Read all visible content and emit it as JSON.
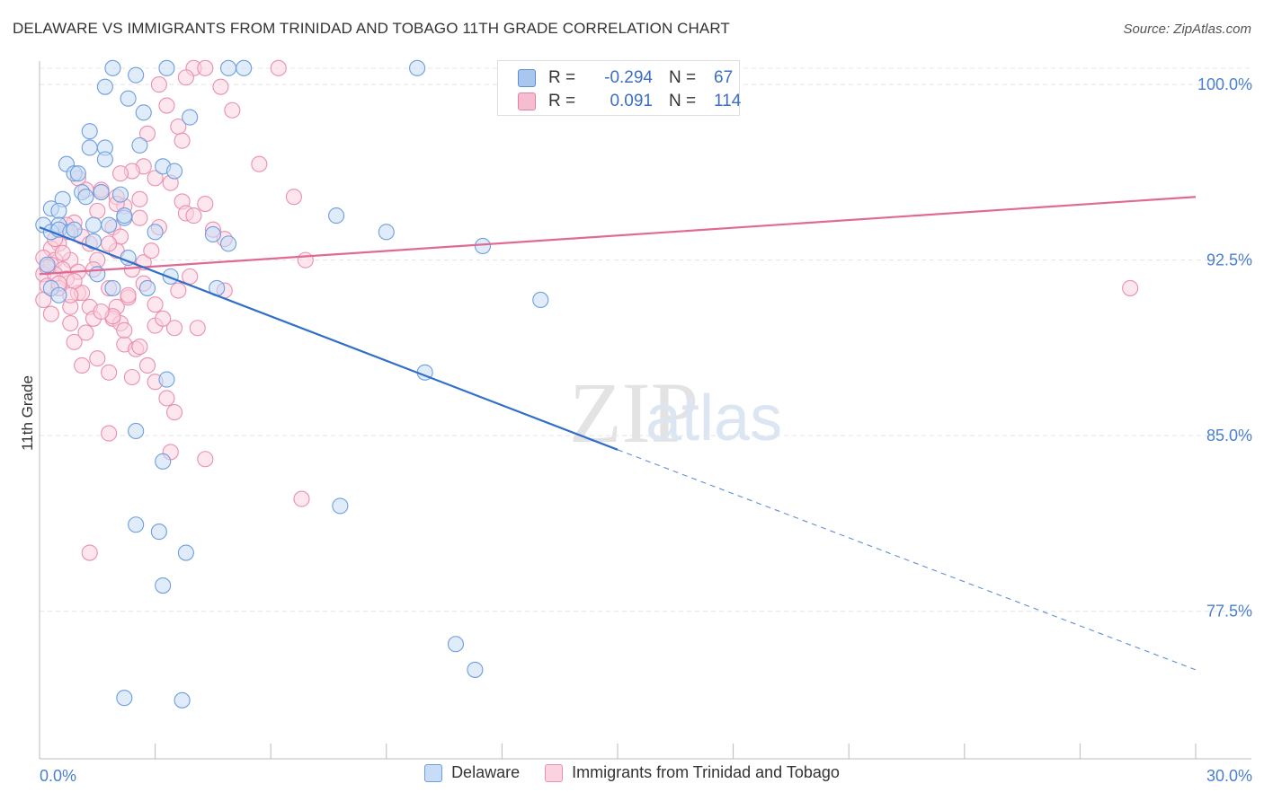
{
  "title": "DELAWARE VS IMMIGRANTS FROM TRINIDAD AND TOBAGO 11TH GRADE CORRELATION CHART",
  "source": "Source: ZipAtlas.com",
  "watermark": {
    "zip": "ZIP",
    "atlas": "atlas"
  },
  "stats": [
    {
      "r_label": "R =",
      "r_value": "-0.294",
      "n_label": "N =",
      "n_value": "67",
      "color": "#a9c7ee",
      "border": "#5b8fd6"
    },
    {
      "r_label": "R =",
      "r_value": "0.091",
      "n_label": "N =",
      "n_value": "114",
      "color": "#f6bcd0",
      "border": "#e77fa2"
    }
  ],
  "legend": [
    {
      "label": "Delaware",
      "color": "#c7dcf6",
      "border": "#6d9ee0"
    },
    {
      "label": "Immigrants from Trinidad and Tobago",
      "color": "#fbd2df",
      "border": "#ea8fae"
    }
  ],
  "chart_data": {
    "type": "scatter",
    "title": "DELAWARE VS IMMIGRANTS FROM TRINIDAD AND TOBAGO 11TH GRADE CORRELATION CHART",
    "xlabel": "",
    "ylabel": "11th Grade",
    "xlim": [
      0,
      30
    ],
    "ylim": [
      71.2,
      101
    ],
    "x_tick_labels": [
      {
        "value": 0,
        "label": "0.0%"
      },
      {
        "value": 30,
        "label": "30.0%"
      }
    ],
    "y_ticks": [
      {
        "value": 77.5,
        "label": "77.5%"
      },
      {
        "value": 85.0,
        "label": "85.0%"
      },
      {
        "value": 92.5,
        "label": "92.5%"
      },
      {
        "value": 100.0,
        "label": "100.0%"
      }
    ],
    "x_minor_ticks": [
      0,
      3,
      6,
      9,
      12,
      15,
      18,
      21,
      24,
      27,
      30
    ],
    "grid": true,
    "series": [
      {
        "name": "Delaware",
        "color": "#6d9ee0",
        "fill": "#c7dcf6",
        "trend": {
          "x": [
            0,
            15
          ],
          "y": [
            93.9,
            84.4
          ],
          "dashed_to": {
            "x": 30,
            "y": 75.0
          }
        },
        "points": [
          [
            1.9,
            100.7
          ],
          [
            2.5,
            100.4
          ],
          [
            3.3,
            100.7
          ],
          [
            4.9,
            100.7
          ],
          [
            5.3,
            100.7
          ],
          [
            9.8,
            100.7
          ],
          [
            1.7,
            99.9
          ],
          [
            2.3,
            99.4
          ],
          [
            2.7,
            98.8
          ],
          [
            3.9,
            98.6
          ],
          [
            1.3,
            98.0
          ],
          [
            1.3,
            97.3
          ],
          [
            1.7,
            97.3
          ],
          [
            2.6,
            97.4
          ],
          [
            1.7,
            96.8
          ],
          [
            0.7,
            96.6
          ],
          [
            3.2,
            96.5
          ],
          [
            0.9,
            96.2
          ],
          [
            1.0,
            96.2
          ],
          [
            3.5,
            96.3
          ],
          [
            1.6,
            95.4
          ],
          [
            1.1,
            95.4
          ],
          [
            2.1,
            95.3
          ],
          [
            1.2,
            95.2
          ],
          [
            0.6,
            95.1
          ],
          [
            0.3,
            94.7
          ],
          [
            0.5,
            94.6
          ],
          [
            2.2,
            94.3
          ],
          [
            2.2,
            94.4
          ],
          [
            7.7,
            94.4
          ],
          [
            0.1,
            94.0
          ],
          [
            0.5,
            94.0
          ],
          [
            1.4,
            94.0
          ],
          [
            1.8,
            94.0
          ],
          [
            0.3,
            93.7
          ],
          [
            0.5,
            93.8
          ],
          [
            0.8,
            93.7
          ],
          [
            0.9,
            93.8
          ],
          [
            4.5,
            93.6
          ],
          [
            4.9,
            93.2
          ],
          [
            3.0,
            93.7
          ],
          [
            9.0,
            93.7
          ],
          [
            11.5,
            93.1
          ],
          [
            1.4,
            93.3
          ],
          [
            2.3,
            92.6
          ],
          [
            1.5,
            91.9
          ],
          [
            1.9,
            91.3
          ],
          [
            3.4,
            91.8
          ],
          [
            0.3,
            91.3
          ],
          [
            2.8,
            91.3
          ],
          [
            4.6,
            91.3
          ],
          [
            0.5,
            91.0
          ],
          [
            13.0,
            90.8
          ],
          [
            3.3,
            87.4
          ],
          [
            2.5,
            85.2
          ],
          [
            10.0,
            87.7
          ],
          [
            3.2,
            83.9
          ],
          [
            7.8,
            82.0
          ],
          [
            2.5,
            81.2
          ],
          [
            3.1,
            80.9
          ],
          [
            3.8,
            80.0
          ],
          [
            3.2,
            78.6
          ],
          [
            10.8,
            76.1
          ],
          [
            11.3,
            75.0
          ],
          [
            2.2,
            73.8
          ],
          [
            3.7,
            73.7
          ],
          [
            0.2,
            92.3
          ]
        ]
      },
      {
        "name": "Immigrants from Trinidad and Tobago",
        "color": "#ea8fae",
        "fill": "#fbd2df",
        "trend": {
          "x": [
            0,
            30
          ],
          "y": [
            91.9,
            95.2
          ]
        },
        "points": [
          [
            4.0,
            100.7
          ],
          [
            4.3,
            100.7
          ],
          [
            6.2,
            100.7
          ],
          [
            3.8,
            100.3
          ],
          [
            3.1,
            100.0
          ],
          [
            4.7,
            99.9
          ],
          [
            3.3,
            99.1
          ],
          [
            5.0,
            98.9
          ],
          [
            3.6,
            98.2
          ],
          [
            2.8,
            97.9
          ],
          [
            3.7,
            97.6
          ],
          [
            5.7,
            96.6
          ],
          [
            2.7,
            96.5
          ],
          [
            2.4,
            96.3
          ],
          [
            2.1,
            96.2
          ],
          [
            3.0,
            96.0
          ],
          [
            3.4,
            95.8
          ],
          [
            1.2,
            95.5
          ],
          [
            1.6,
            95.4
          ],
          [
            2.0,
            95.2
          ],
          [
            2.6,
            95.1
          ],
          [
            3.7,
            95.0
          ],
          [
            6.6,
            95.2
          ],
          [
            2.2,
            94.8
          ],
          [
            4.3,
            94.9
          ],
          [
            1.5,
            94.6
          ],
          [
            3.8,
            94.5
          ],
          [
            4.0,
            94.4
          ],
          [
            2.6,
            94.3
          ],
          [
            0.9,
            94.1
          ],
          [
            0.7,
            94.0
          ],
          [
            1.9,
            93.9
          ],
          [
            3.1,
            93.9
          ],
          [
            4.5,
            93.8
          ],
          [
            0.7,
            93.7
          ],
          [
            1.1,
            93.5
          ],
          [
            2.1,
            93.5
          ],
          [
            4.8,
            93.4
          ],
          [
            1.3,
            93.2
          ],
          [
            0.5,
            93.2
          ],
          [
            0.3,
            93.0
          ],
          [
            2.0,
            92.9
          ],
          [
            0.1,
            92.6
          ],
          [
            0.4,
            92.5
          ],
          [
            0.8,
            92.5
          ],
          [
            1.5,
            92.5
          ],
          [
            2.7,
            92.4
          ],
          [
            6.9,
            92.5
          ],
          [
            0.3,
            92.3
          ],
          [
            0.6,
            92.1
          ],
          [
            1.0,
            92.0
          ],
          [
            2.4,
            92.1
          ],
          [
            0.1,
            91.9
          ],
          [
            0.4,
            91.9
          ],
          [
            0.7,
            91.7
          ],
          [
            0.2,
            91.4
          ],
          [
            0.5,
            91.3
          ],
          [
            1.8,
            91.3
          ],
          [
            3.6,
            91.2
          ],
          [
            4.8,
            91.2
          ],
          [
            1.0,
            91.1
          ],
          [
            2.3,
            90.9
          ],
          [
            0.1,
            90.8
          ],
          [
            0.8,
            90.5
          ],
          [
            1.3,
            90.5
          ],
          [
            2.0,
            90.5
          ],
          [
            3.0,
            90.6
          ],
          [
            1.4,
            90.0
          ],
          [
            1.9,
            90.0
          ],
          [
            0.8,
            89.8
          ],
          [
            2.1,
            89.8
          ],
          [
            3.0,
            89.7
          ],
          [
            3.5,
            89.6
          ],
          [
            4.1,
            89.6
          ],
          [
            1.2,
            89.4
          ],
          [
            0.9,
            89.0
          ],
          [
            2.2,
            88.9
          ],
          [
            2.5,
            88.7
          ],
          [
            1.5,
            88.3
          ],
          [
            2.8,
            88.0
          ],
          [
            1.8,
            87.7
          ],
          [
            2.4,
            87.5
          ],
          [
            3.0,
            87.3
          ],
          [
            3.3,
            86.6
          ],
          [
            3.5,
            86.0
          ],
          [
            1.8,
            85.1
          ],
          [
            3.4,
            84.3
          ],
          [
            4.3,
            84.0
          ],
          [
            6.8,
            82.3
          ],
          [
            1.3,
            80.0
          ],
          [
            28.3,
            91.3
          ],
          [
            1.0,
            96.0
          ],
          [
            1.6,
            95.5
          ],
          [
            2.0,
            94.9
          ],
          [
            1.1,
            91.1
          ],
          [
            0.4,
            93.4
          ],
          [
            1.4,
            92.1
          ],
          [
            2.9,
            92.9
          ],
          [
            0.9,
            91.6
          ],
          [
            1.9,
            90.1
          ],
          [
            2.3,
            91.0
          ],
          [
            3.2,
            90.0
          ],
          [
            0.6,
            92.8
          ],
          [
            1.8,
            93.2
          ],
          [
            0.2,
            92.2
          ],
          [
            0.5,
            91.5
          ],
          [
            2.7,
            91.5
          ],
          [
            3.9,
            91.8
          ],
          [
            1.1,
            88.0
          ],
          [
            2.2,
            89.5
          ],
          [
            0.3,
            90.2
          ],
          [
            1.6,
            90.3
          ],
          [
            0.8,
            91.0
          ],
          [
            2.6,
            88.8
          ]
        ]
      }
    ]
  }
}
